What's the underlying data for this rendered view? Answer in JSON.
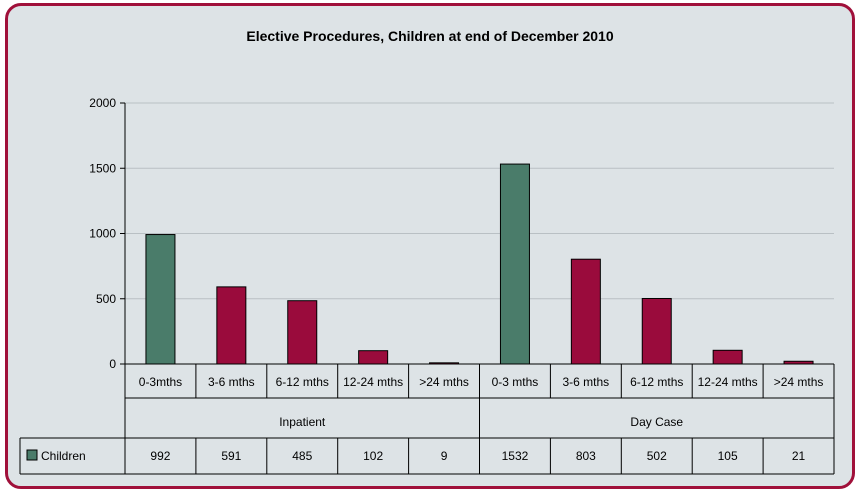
{
  "chart_data": {
    "type": "bar",
    "title": "Elective Procedures, Children at end of December 2010",
    "ylim": [
      0,
      2000
    ],
    "yticks": [
      0,
      500,
      1000,
      1500,
      2000
    ],
    "grid": true,
    "groups": [
      {
        "label": "Inpatient",
        "categories": [
          "0-3mths",
          "3-6 mths",
          "6-12 mths",
          "12-24 mths",
          ">24 mths"
        ]
      },
      {
        "label": "Day Case",
        "categories": [
          "0-3 mths",
          "3-6 mths",
          "6-12 mths",
          "12-24 mths",
          ">24 mths"
        ]
      }
    ],
    "series": [
      {
        "name": "Children",
        "values": [
          992,
          591,
          485,
          102,
          9,
          1532,
          803,
          502,
          105,
          21
        ]
      }
    ],
    "bar_colors": [
      "#4a7c6a",
      "#9a0b3c",
      "#9a0b3c",
      "#9a0b3c",
      "#9a0b3c",
      "#4a7c6a",
      "#9a0b3c",
      "#9a0b3c",
      "#9a0b3c",
      "#9a0b3c"
    ],
    "legend_color": "#4a7c6a",
    "frame_color": "#a0103a",
    "background_color": "#dde3e6"
  }
}
